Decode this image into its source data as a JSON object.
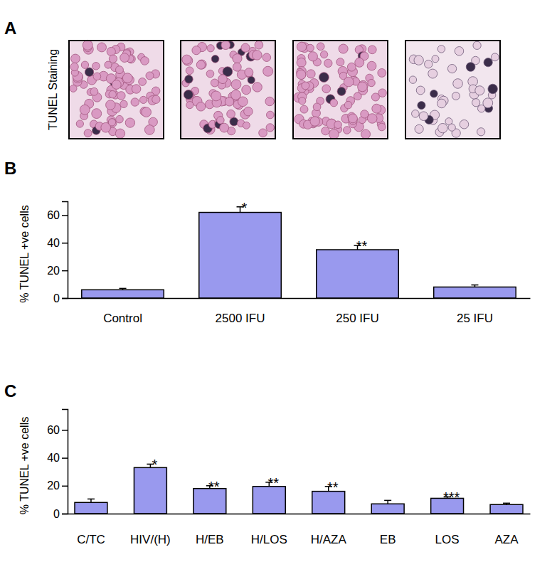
{
  "panel_a": {
    "title": "A",
    "ylabel": "TUNEL Staining"
  },
  "chart_data": [
    {
      "type": "bar",
      "title": "B",
      "ylabel": "% TUNEL +ve cells",
      "categories": [
        "Control",
        "2500 IFU",
        "250 IFU",
        "25 IFU"
      ],
      "values": [
        6,
        62,
        35,
        8
      ],
      "errors": [
        1,
        4,
        3,
        1.5
      ],
      "annotations": [
        null,
        "*",
        "**",
        null
      ],
      "color": "#9999ee",
      "ylim": [
        0,
        70
      ],
      "yticks": [
        0,
        20,
        40,
        60
      ],
      "grid": false
    },
    {
      "type": "bar",
      "title": "C",
      "ylabel": "% TUNEL +ve cells",
      "categories": [
        "C/TC",
        "HIV/(H)",
        "H/EB",
        "H/LOS",
        "H/AZA",
        "EB",
        "LOS",
        "AZA"
      ],
      "values": [
        8,
        33,
        18,
        19.5,
        16,
        7,
        11,
        6.5
      ],
      "errors": [
        2.5,
        2.5,
        2,
        3,
        3.5,
        2.5,
        1,
        1
      ],
      "annotations": [
        null,
        "*",
        "**",
        "**",
        "**",
        null,
        "***",
        null
      ],
      "color": "#9999ee",
      "ylim": [
        0,
        75
      ],
      "yticks": [
        0,
        20,
        40,
        60
      ],
      "grid": false
    }
  ]
}
